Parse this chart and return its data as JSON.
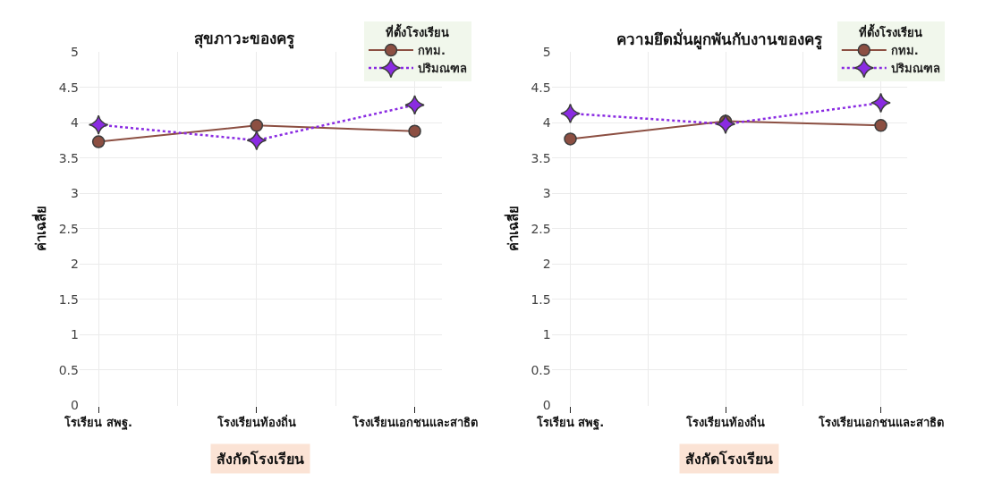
{
  "chart_data": [
    {
      "type": "line",
      "title": "สุขภาวะของครู",
      "xlabel": "สังกัดโรงเรียน",
      "ylabel": "ค่าเฉลี่ย",
      "legend_title": "ที่ตั้งโรงเรียน",
      "categories": [
        "โรเรียน สพฐ.",
        "โรงเรียนท้องถิ่น",
        "โรงเรียนเอกชนและสาธิต"
      ],
      "series": [
        {
          "name": "กทม.",
          "color": "#8c4f42",
          "values": [
            3.73,
            3.96,
            3.88
          ],
          "marker": "circle",
          "line_style": "solid"
        },
        {
          "name": "ปริมณฑล",
          "color": "#8a2be2",
          "values": [
            3.97,
            3.75,
            4.25
          ],
          "marker": "star",
          "line_style": "dotted"
        }
      ],
      "ylim": [
        0,
        5
      ],
      "yticks": [
        0,
        0.5,
        1,
        1.5,
        2,
        2.5,
        3,
        3.5,
        4,
        4.5,
        5
      ],
      "grid": true,
      "legend": "top right"
    },
    {
      "type": "line",
      "title": "ความยึดมั่นผูกพันกับงานของครู",
      "xlabel": "สังกัดโรงเรียน",
      "ylabel": "ค่าเฉลี่ย",
      "legend_title": "ที่ตั้งโรงเรียน",
      "categories": [
        "โรเรียน สพฐ.",
        "โรงเรียนท้องถิ่น",
        "โรงเรียนเอกชนและสาธิต"
      ],
      "series": [
        {
          "name": "กทม.",
          "color": "#8c4f42",
          "values": [
            3.77,
            4.02,
            3.96
          ],
          "marker": "circle",
          "line_style": "solid"
        },
        {
          "name": "ปริมณฑล",
          "color": "#8a2be2",
          "values": [
            4.13,
            3.98,
            4.28
          ],
          "marker": "star",
          "line_style": "dotted"
        }
      ],
      "ylim": [
        0,
        5
      ],
      "yticks": [
        0,
        0.5,
        1,
        1.5,
        2,
        2.5,
        3,
        3.5,
        4,
        4.5,
        5
      ],
      "grid": true,
      "legend": "top right"
    }
  ]
}
